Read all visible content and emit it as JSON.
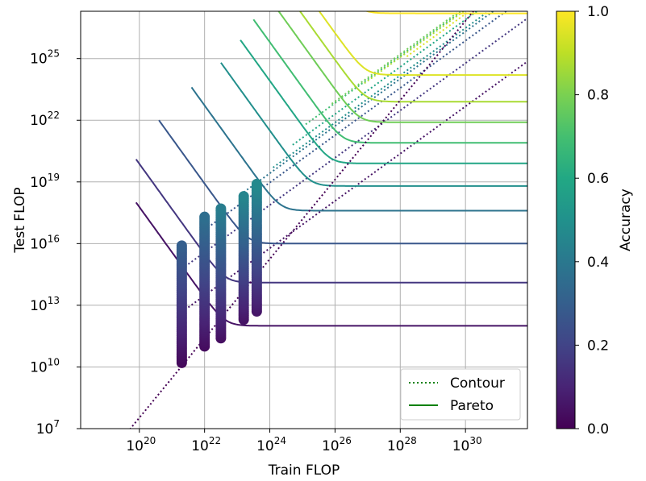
{
  "chart_data": {
    "type": "line",
    "title": "",
    "xlabel": "Train FLOP",
    "ylabel": "Test FLOP",
    "xscale": "log",
    "yscale": "log",
    "xlim_log10": [
      18.2,
      31.9
    ],
    "ylim_log10": [
      7,
      27.3
    ],
    "x_ticks": [
      {
        "exp": 20,
        "base": "10",
        "sup": "20"
      },
      {
        "exp": 22,
        "base": "10",
        "sup": "22"
      },
      {
        "exp": 24,
        "base": "10",
        "sup": "24"
      },
      {
        "exp": 26,
        "base": "10",
        "sup": "26"
      },
      {
        "exp": 28,
        "base": "10",
        "sup": "28"
      },
      {
        "exp": 30,
        "base": "10",
        "sup": "30"
      }
    ],
    "y_ticks": [
      {
        "exp": 7,
        "base": "10",
        "sup": "7"
      },
      {
        "exp": 10,
        "base": "10",
        "sup": "10"
      },
      {
        "exp": 13,
        "base": "10",
        "sup": "13"
      },
      {
        "exp": 16,
        "base": "10",
        "sup": "16"
      },
      {
        "exp": 19,
        "base": "10",
        "sup": "19"
      },
      {
        "exp": 22,
        "base": "10",
        "sup": "22"
      },
      {
        "exp": 25,
        "base": "10",
        "sup": "25"
      }
    ],
    "grid": true,
    "legend": {
      "placement": "lower-right",
      "entries": [
        {
          "label": "Contour",
          "style": "dotted",
          "color": "#008000"
        },
        {
          "label": "Pareto",
          "style": "solid",
          "color": "#008000"
        }
      ]
    },
    "colorbar": {
      "label": "Accuracy",
      "ticks": [
        "0.0",
        "0.2",
        "0.4",
        "0.6",
        "0.8",
        "1.0"
      ],
      "range": [
        0,
        1
      ],
      "colormap": "viridis"
    },
    "pareto_curves": [
      {
        "accuracy": 0.05,
        "plateau_log10": 12.0,
        "x_min_log10": 19.9
      },
      {
        "accuracy": 0.16,
        "plateau_log10": 14.1,
        "x_min_log10": 19.9
      },
      {
        "accuracy": 0.27,
        "plateau_log10": 16.0,
        "x_min_log10": 20.6
      },
      {
        "accuracy": 0.38,
        "plateau_log10": 17.6,
        "x_min_log10": 21.6
      },
      {
        "accuracy": 0.49,
        "plateau_log10": 18.8,
        "x_min_log10": 22.5
      },
      {
        "accuracy": 0.59,
        "plateau_log10": 19.9,
        "x_min_log10": 23.1
      },
      {
        "accuracy": 0.69,
        "plateau_log10": 20.9,
        "x_min_log10": 23.5
      },
      {
        "accuracy": 0.78,
        "plateau_log10": 21.9,
        "x_min_log10": 24.0
      },
      {
        "accuracy": 0.87,
        "plateau_log10": 22.9,
        "x_min_log10": 24.2
      },
      {
        "accuracy": 0.95,
        "plateau_log10": 24.2,
        "x_min_log10": 24.2
      },
      {
        "accuracy": 1.0,
        "plateau_log10": 27.2,
        "x_min_log10": 24.0
      }
    ],
    "measurement_columns": [
      {
        "x_log10": 21.3,
        "y_min_log10": 10.2,
        "y_max_log10": 15.9,
        "acc_min": 0.02,
        "acc_max": 0.3
      },
      {
        "x_log10": 22.0,
        "y_min_log10": 11.0,
        "y_max_log10": 17.3,
        "acc_min": 0.03,
        "acc_max": 0.36
      },
      {
        "x_log10": 22.5,
        "y_min_log10": 11.4,
        "y_max_log10": 17.7,
        "acc_min": 0.04,
        "acc_max": 0.42
      },
      {
        "x_log10": 23.2,
        "y_min_log10": 12.3,
        "y_max_log10": 18.3,
        "acc_min": 0.05,
        "acc_max": 0.45
      },
      {
        "x_log10": 23.6,
        "y_min_log10": 12.7,
        "y_max_log10": 18.9,
        "acc_min": 0.06,
        "acc_max": 0.47
      }
    ]
  }
}
